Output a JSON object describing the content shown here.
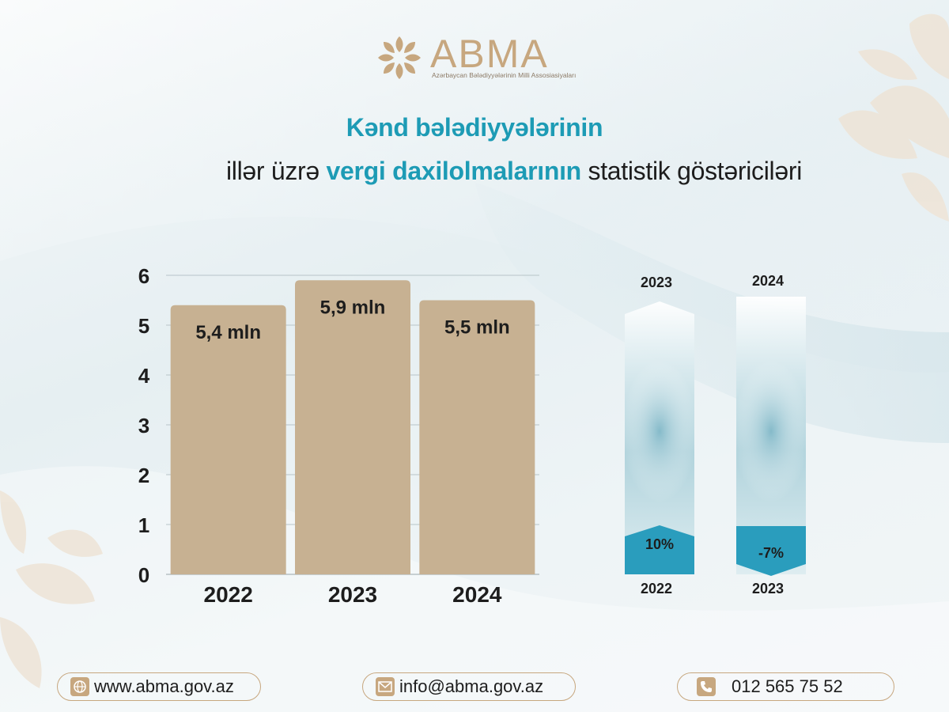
{
  "logo": {
    "text": "ABMA",
    "subtitle": "Azərbaycan Bələdiyyələrinin Milli Assosiasiyaları",
    "color": "#c7a77f"
  },
  "title": {
    "line1": "Kənd bələdiyyələrinin",
    "line2_prefix": "illər üzrə ",
    "line2_highlight": "vergi daxilolmalarının",
    "line2_suffix": " statistik göstəriciləri"
  },
  "chart_data": [
    {
      "type": "bar",
      "categories": [
        "2022",
        "2023",
        "2024"
      ],
      "values": [
        5.4,
        5.9,
        5.5
      ],
      "data_labels": [
        "5,4 mln",
        "5,9 mln",
        "5,5 mln"
      ],
      "yticks": [
        "0",
        "1",
        "2",
        "3",
        "4",
        "5",
        "6"
      ],
      "ylim": [
        0,
        6
      ],
      "grid": true,
      "bar_color": "#c7b192",
      "title": "",
      "xlabel": "",
      "ylabel": ""
    },
    {
      "type": "bar",
      "categories": [
        "2023 / 2022",
        "2024 / 2023"
      ],
      "from_labels": [
        "2022",
        "2023"
      ],
      "to_labels": [
        "2023",
        "2024"
      ],
      "values": [
        10,
        -7
      ],
      "data_labels": [
        "10%",
        "-7%"
      ],
      "unit": "%",
      "bar_color": "#2a9dbd"
    }
  ],
  "contacts": {
    "website": "www.abma.gov.az",
    "email": "info@abma.gov.az",
    "phone": "012 565 75 52",
    "icons": [
      "globe-icon",
      "mail-icon",
      "phone-icon"
    ]
  }
}
